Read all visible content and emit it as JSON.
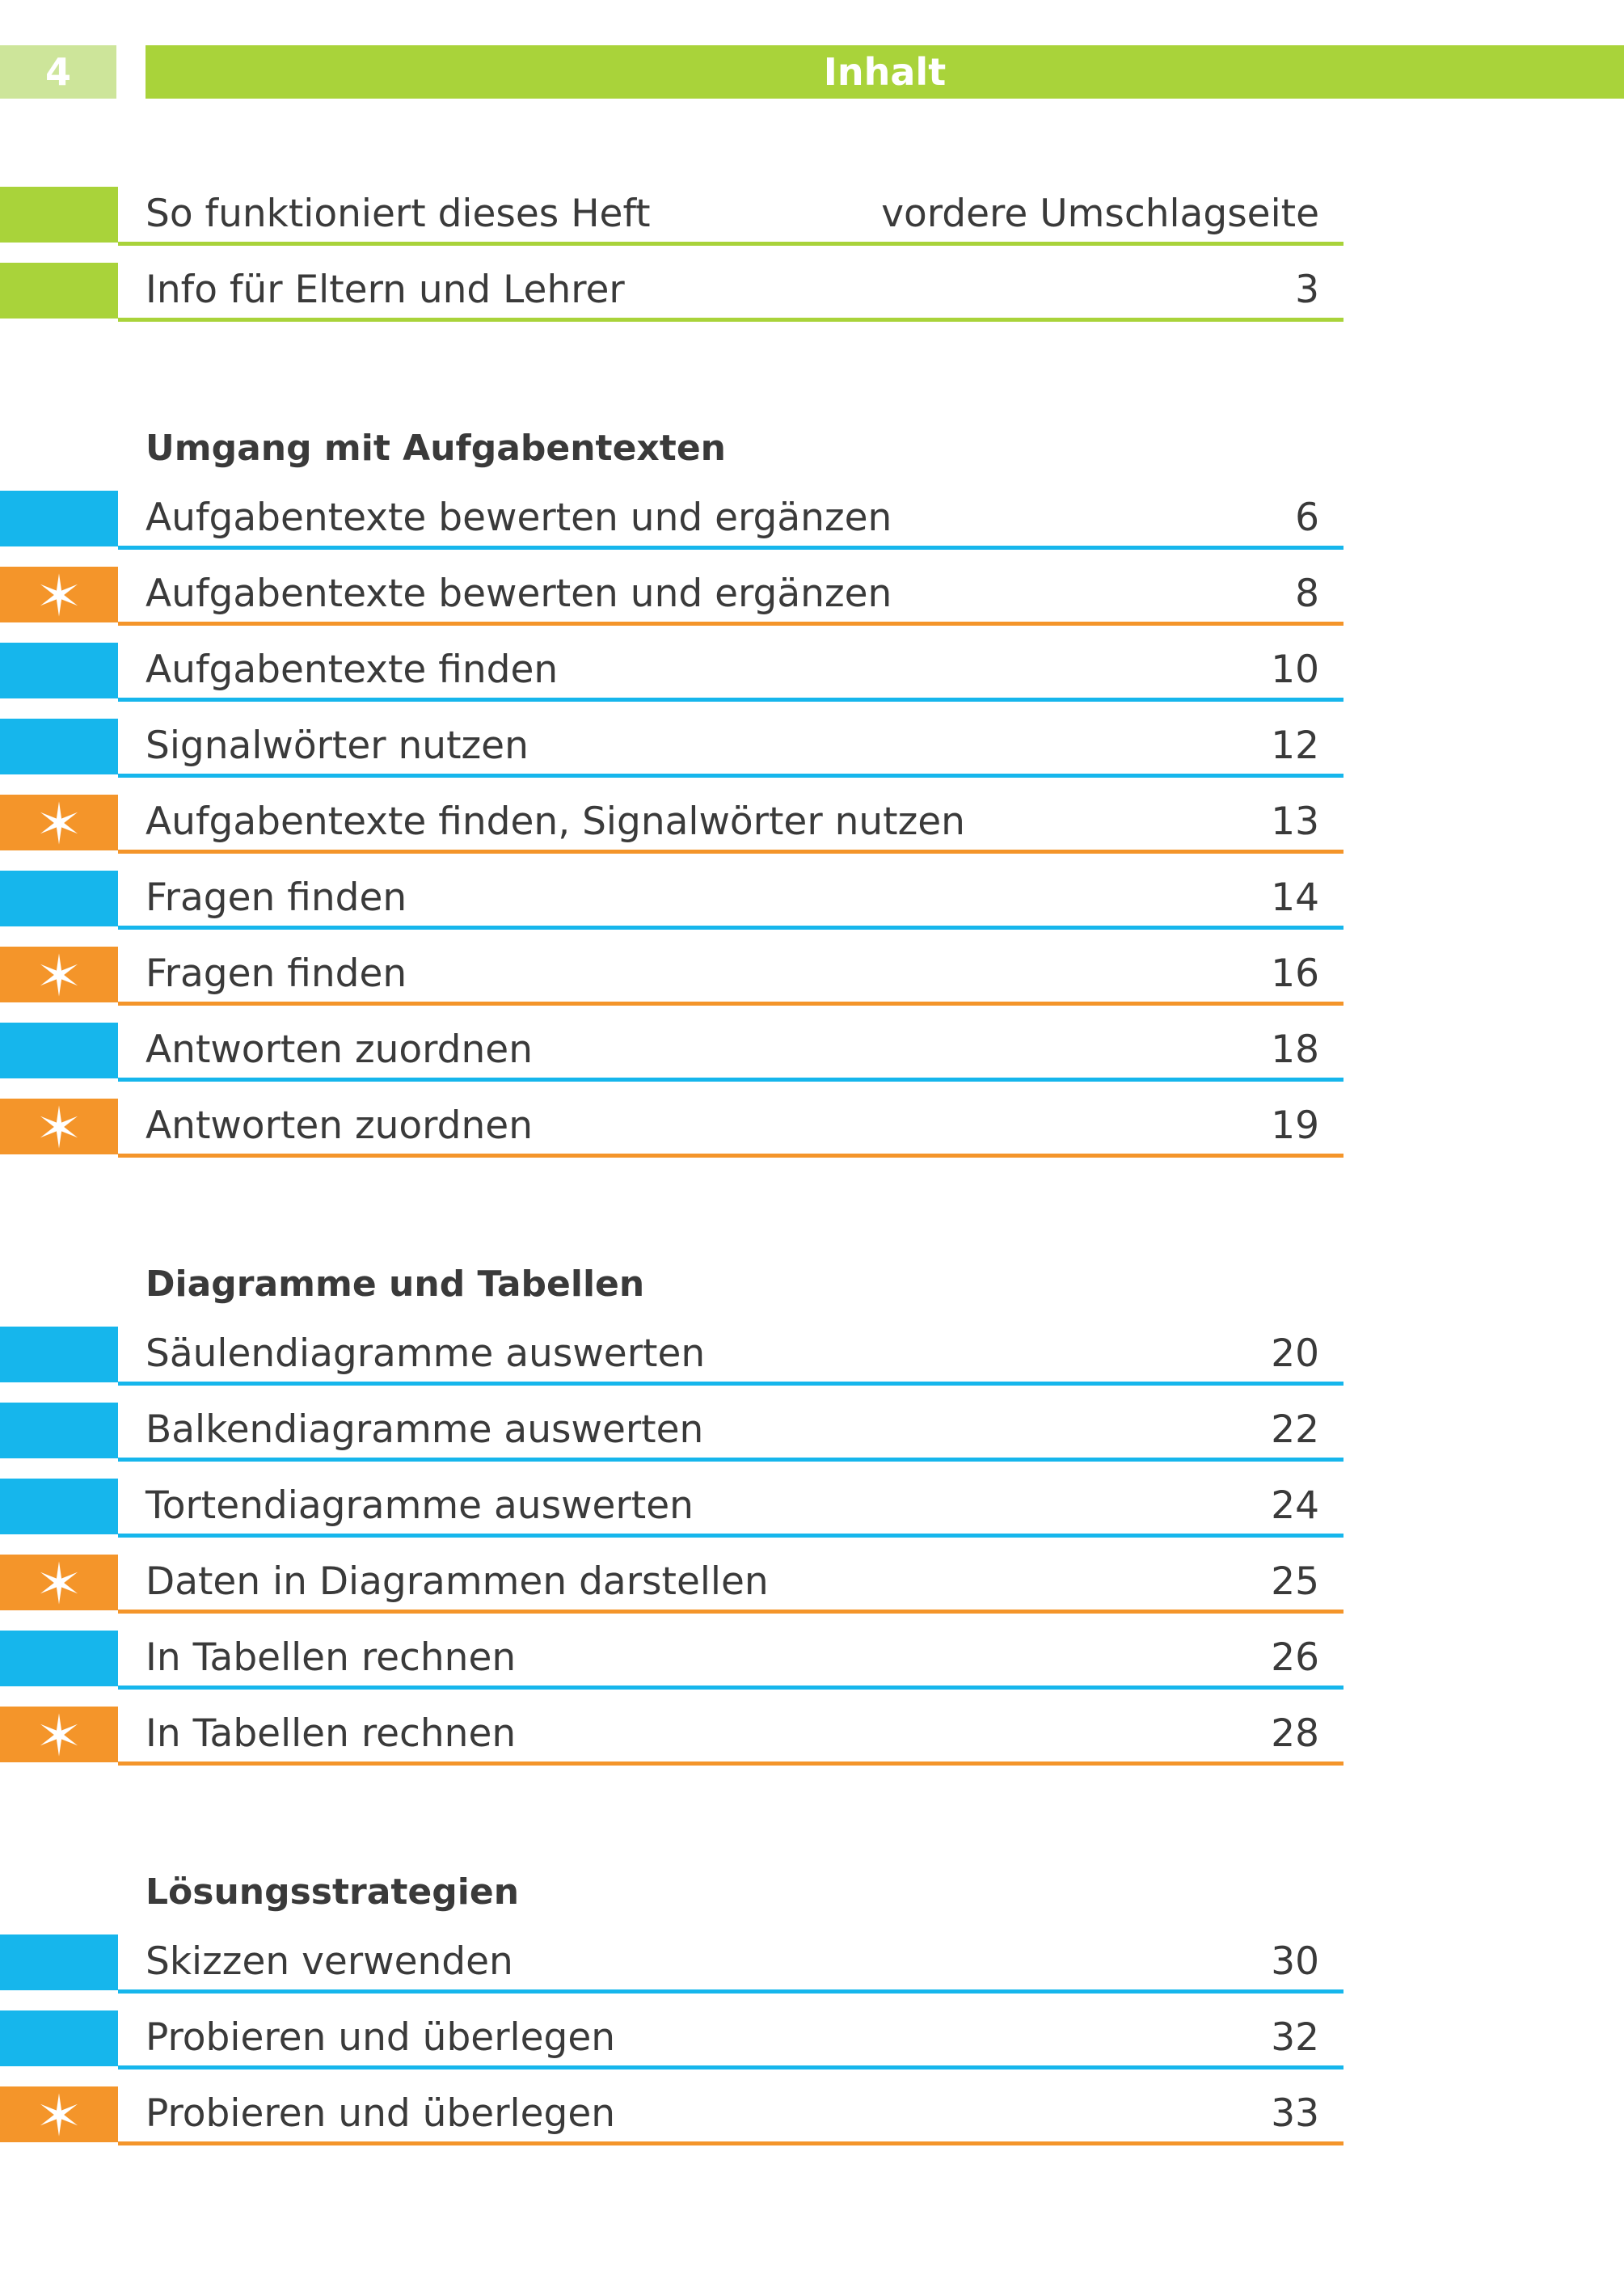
{
  "header": {
    "page_number": "4",
    "title": "Inhalt"
  },
  "colors": {
    "green": "#a9d33a",
    "light_green": "#cde59a",
    "blue": "#16b6ec",
    "orange": "#f4952a"
  },
  "sections": [
    {
      "heading": "",
      "items": [
        {
          "title": "So funktioniert dieses Heft",
          "page": "vordere Umschlagseite",
          "color": "#a9d33a",
          "star": false
        },
        {
          "title": "Info für Eltern und Lehrer",
          "page": "3",
          "color": "#a9d33a",
          "star": false
        }
      ]
    },
    {
      "heading": "Umgang mit Aufgabentexten",
      "items": [
        {
          "title": "Aufgabentexte bewerten und ergänzen",
          "page": "6",
          "color": "#16b6ec",
          "star": false
        },
        {
          "title": "Aufgabentexte bewerten und ergänzen",
          "page": "8",
          "color": "#f4952a",
          "star": true
        },
        {
          "title": "Aufgabentexte finden",
          "page": "10",
          "color": "#16b6ec",
          "star": false
        },
        {
          "title": "Signalwörter nutzen",
          "page": "12",
          "color": "#16b6ec",
          "star": false
        },
        {
          "title": "Aufgabentexte finden, Signalwörter nutzen",
          "page": "13",
          "color": "#f4952a",
          "star": true
        },
        {
          "title": "Fragen finden",
          "page": "14",
          "color": "#16b6ec",
          "star": false
        },
        {
          "title": "Fragen finden",
          "page": "16",
          "color": "#f4952a",
          "star": true
        },
        {
          "title": "Antworten zuordnen",
          "page": "18",
          "color": "#16b6ec",
          "star": false
        },
        {
          "title": "Antworten zuordnen",
          "page": "19",
          "color": "#f4952a",
          "star": true
        }
      ]
    },
    {
      "heading": "Diagramme und Tabellen",
      "items": [
        {
          "title": "Säulendiagramme auswerten",
          "page": "20",
          "color": "#16b6ec",
          "star": false
        },
        {
          "title": "Balkendiagramme auswerten",
          "page": "22",
          "color": "#16b6ec",
          "star": false
        },
        {
          "title": "Tortendiagramme auswerten",
          "page": "24",
          "color": "#16b6ec",
          "star": false
        },
        {
          "title": "Daten in Diagrammen darstellen",
          "page": "25",
          "color": "#f4952a",
          "star": true
        },
        {
          "title": "In Tabellen rechnen",
          "page": "26",
          "color": "#16b6ec",
          "star": false
        },
        {
          "title": "In Tabellen rechnen",
          "page": "28",
          "color": "#f4952a",
          "star": true
        }
      ]
    },
    {
      "heading": "Lösungsstrategien",
      "items": [
        {
          "title": "Skizzen verwenden",
          "page": "30",
          "color": "#16b6ec",
          "star": false
        },
        {
          "title": "Probieren und überlegen",
          "page": "32",
          "color": "#16b6ec",
          "star": false
        },
        {
          "title": "Probieren und überlegen",
          "page": "33",
          "color": "#f4952a",
          "star": true
        }
      ]
    }
  ]
}
